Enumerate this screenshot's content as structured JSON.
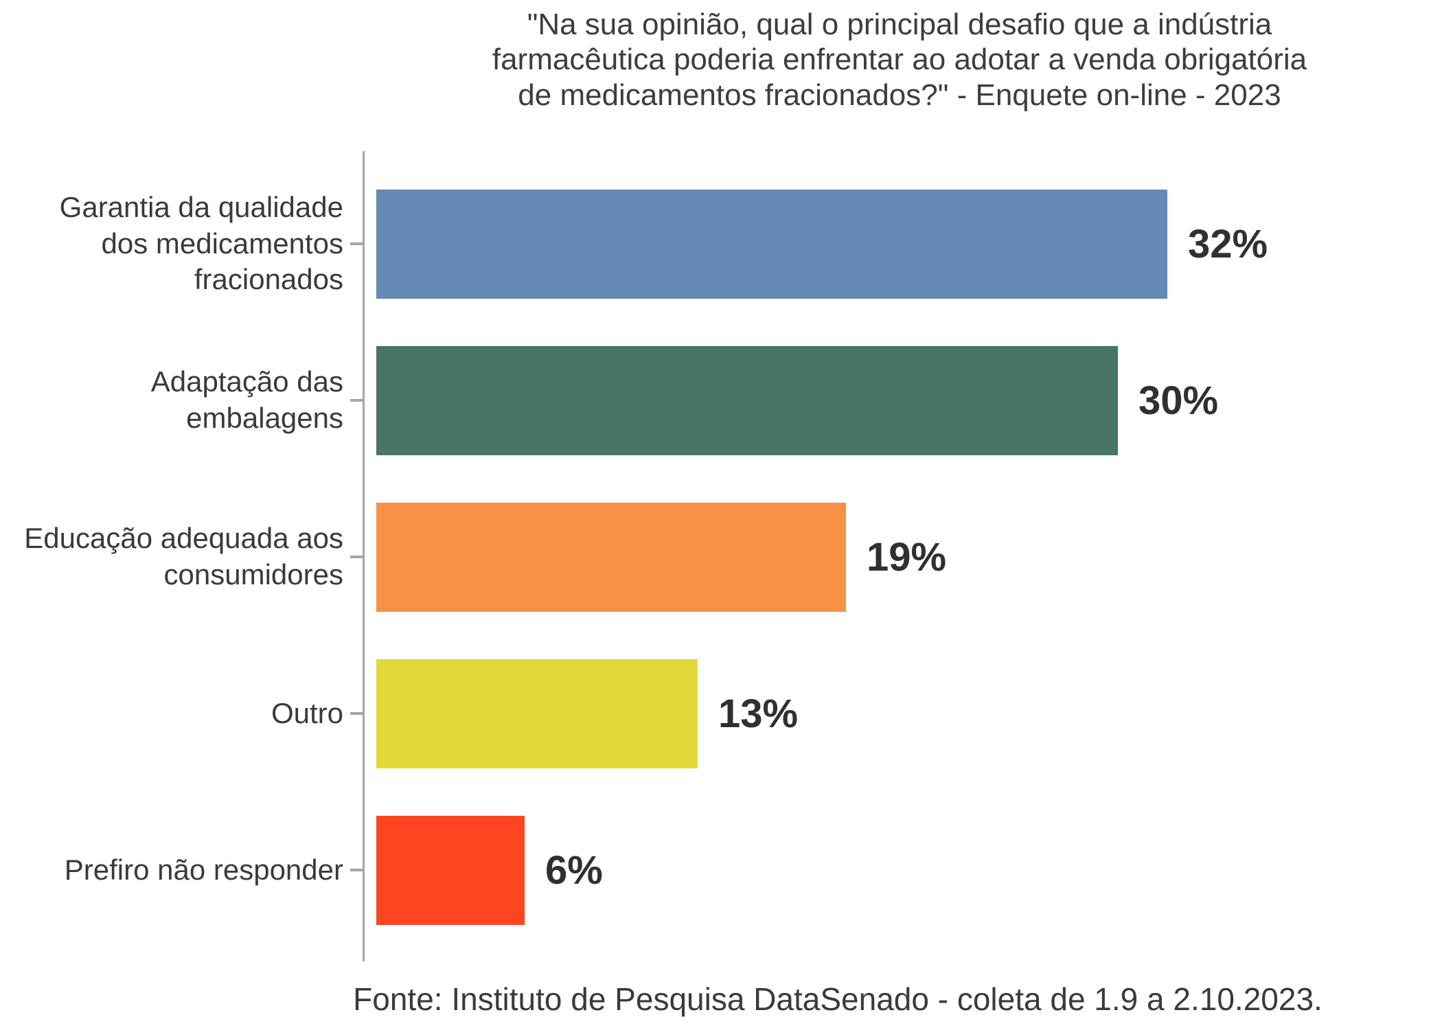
{
  "title": "\"Na sua opinião, qual o principal desafio que a indústria\nfarmacêutica poderia enfrentar ao adotar a venda obrigatória\nde medicamentos fracionados?\" - Enquete on-line - 2023",
  "footer": "Fonte: Instituto de Pesquisa DataSenado - coleta de 1.9 a 2.10.2023.",
  "chart_data": {
    "type": "bar",
    "orientation": "horizontal",
    "title": "\"Na sua opinião, qual o principal desafio que a indústria farmacêutica poderia enfrentar ao adotar a venda obrigatória de medicamentos fracionados?\" - Enquete on-line - 2023",
    "source": "Fonte: Instituto de Pesquisa DataSenado - coleta de 1.9 a 2.10.2023.",
    "categories": [
      "Garantia da qualidade\ndos medicamentos\nfracionados",
      "Adaptação das\nembalagens",
      "Educação adequada aos\nconsumidores",
      "Outro",
      "Prefiro não responder"
    ],
    "values": [
      32,
      30,
      19,
      13,
      6
    ],
    "value_labels": [
      "32%",
      "30%",
      "19%",
      "13%",
      "6%"
    ],
    "colors": [
      "#6389b4",
      "#467663",
      "#f89145",
      "#e3d83a",
      "#fd4621"
    ],
    "xlim": [
      0,
      43
    ],
    "xlabel": "",
    "ylabel": "",
    "grid": false,
    "legend": "none",
    "axis_color": "#a6a6a6",
    "label_color": "#3a3a3a"
  }
}
